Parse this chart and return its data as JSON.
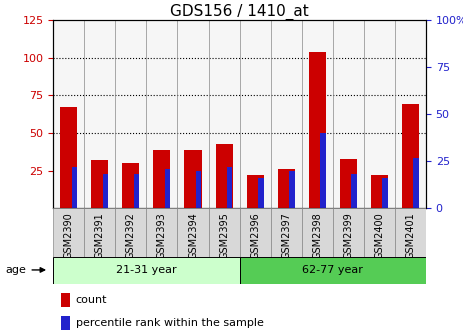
{
  "title": "GDS156 / 1410_at",
  "samples": [
    "GSM2390",
    "GSM2391",
    "GSM2392",
    "GSM2393",
    "GSM2394",
    "GSM2395",
    "GSM2396",
    "GSM2397",
    "GSM2398",
    "GSM2399",
    "GSM2400",
    "GSM2401"
  ],
  "count_values": [
    67,
    32,
    30,
    39,
    39,
    43,
    22,
    26,
    104,
    33,
    22,
    69
  ],
  "percentile_values": [
    22,
    18,
    18,
    21,
    20,
    22,
    16,
    20,
    40,
    18,
    16,
    27
  ],
  "ylim_left": [
    0,
    125
  ],
  "ylim_right": [
    0,
    100
  ],
  "yticks_left": [
    25,
    50,
    75,
    100,
    125
  ],
  "ytick_labels_right": [
    "0",
    "25",
    "50",
    "75",
    "100%"
  ],
  "yticks_right": [
    0,
    25,
    50,
    75,
    100
  ],
  "group1_label": "21-31 year",
  "group2_label": "62-77 year",
  "age_label": "age",
  "legend_count": "count",
  "legend_percentile": "percentile rank within the sample",
  "bar_color_red": "#cc0000",
  "bar_color_blue": "#2222cc",
  "group1_bg": "#ccffcc",
  "group2_bg": "#55cc55",
  "title_fontsize": 11,
  "tick_label_fontsize": 7,
  "axis_fontsize": 8,
  "left_tick_color": "#cc0000",
  "right_tick_color": "#2222cc"
}
